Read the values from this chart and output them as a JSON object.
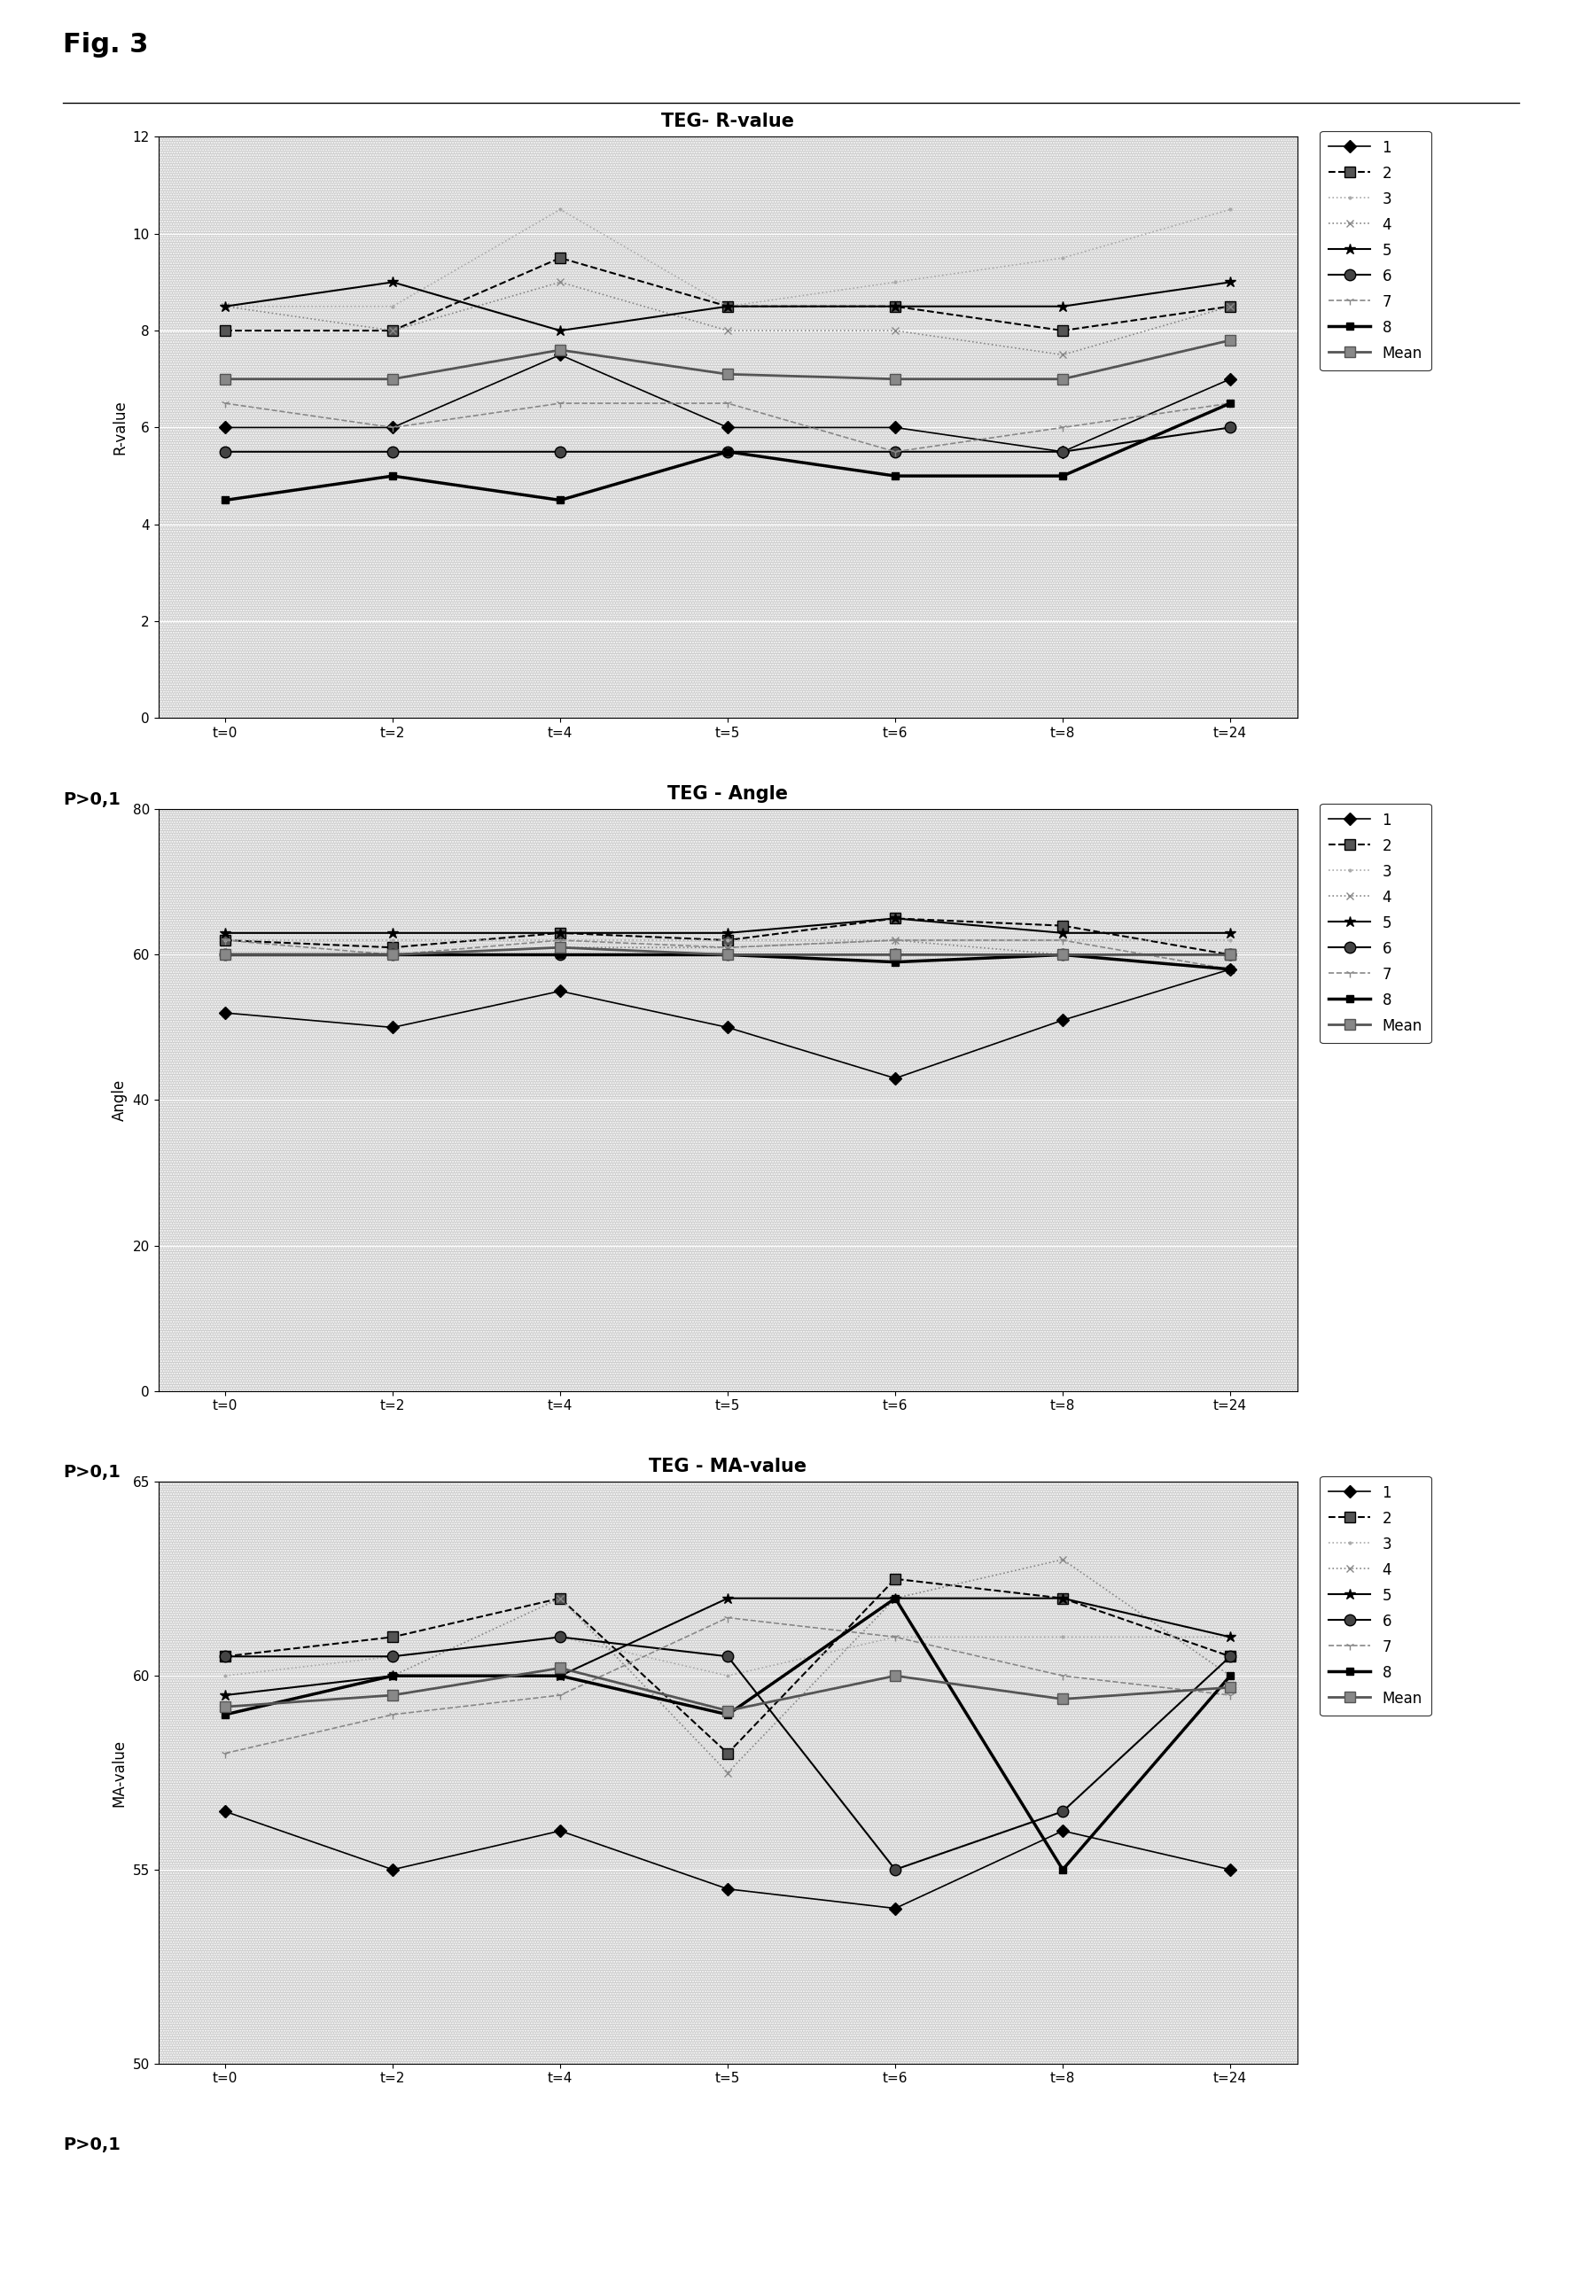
{
  "fig_label": "Fig. 3",
  "p_value_label": "P>0,1",
  "x_ticks": [
    "t=0",
    "t=2",
    "t=4",
    "t=5",
    "t=6",
    "t=8",
    "t=24"
  ],
  "x_vals": [
    0,
    1,
    2,
    3,
    4,
    5,
    6
  ],
  "chart1": {
    "title": "TEG- R-value",
    "ylabel": "R-value",
    "ylim": [
      0,
      12
    ],
    "yticks": [
      0,
      2,
      4,
      6,
      8,
      10,
      12
    ],
    "series": {
      "1": [
        6.0,
        6.0,
        7.5,
        6.0,
        6.0,
        5.5,
        7.0
      ],
      "2": [
        8.0,
        8.0,
        9.5,
        8.5,
        8.5,
        8.0,
        8.5
      ],
      "3": [
        8.5,
        8.5,
        10.5,
        8.5,
        9.0,
        9.5,
        10.5
      ],
      "4": [
        8.5,
        8.0,
        9.0,
        8.0,
        8.0,
        7.5,
        8.5
      ],
      "5": [
        8.5,
        9.0,
        8.0,
        8.5,
        8.5,
        8.5,
        9.0
      ],
      "6": [
        5.5,
        5.5,
        5.5,
        5.5,
        5.5,
        5.5,
        6.0
      ],
      "7": [
        6.5,
        6.0,
        6.5,
        6.5,
        5.5,
        6.0,
        6.5
      ],
      "8": [
        4.5,
        5.0,
        4.5,
        5.5,
        5.0,
        5.0,
        6.5
      ],
      "Mean": [
        7.0,
        7.0,
        7.6,
        7.1,
        7.0,
        7.0,
        7.8
      ]
    }
  },
  "chart2": {
    "title": "TEG - Angle",
    "ylabel": "Angle",
    "ylim": [
      0,
      80
    ],
    "yticks": [
      0,
      20,
      40,
      60,
      80
    ],
    "series": {
      "1": [
        52,
        50,
        55,
        50,
        43,
        51,
        58
      ],
      "2": [
        62,
        61,
        63,
        62,
        65,
        64,
        60
      ],
      "3": [
        62,
        62,
        62,
        62,
        62,
        62,
        62
      ],
      "4": [
        60,
        60,
        61,
        61,
        62,
        60,
        60
      ],
      "5": [
        63,
        63,
        63,
        63,
        65,
        63,
        63
      ],
      "6": [
        60,
        60,
        60,
        60,
        60,
        60,
        60
      ],
      "7": [
        62,
        60,
        62,
        61,
        62,
        62,
        58
      ],
      "8": [
        60,
        60,
        60,
        60,
        59,
        60,
        58
      ],
      "Mean": [
        60,
        60,
        61,
        60,
        60,
        60,
        60
      ]
    }
  },
  "chart3": {
    "title": "TEG - MA-value",
    "ylabel": "MA-value",
    "ylim": [
      50,
      65
    ],
    "yticks": [
      50,
      55,
      60,
      65
    ],
    "series": {
      "1": [
        56.5,
        55.0,
        56.0,
        54.5,
        54.0,
        56.0,
        55.0
      ],
      "2": [
        60.5,
        61.0,
        62.0,
        58.0,
        62.5,
        62.0,
        60.5
      ],
      "3": [
        60.0,
        60.5,
        61.0,
        60.0,
        61.0,
        61.0,
        61.0
      ],
      "4": [
        59.0,
        60.0,
        62.0,
        57.5,
        62.0,
        63.0,
        60.0
      ],
      "5": [
        59.5,
        60.0,
        60.0,
        62.0,
        62.0,
        62.0,
        61.0
      ],
      "6": [
        60.5,
        60.5,
        61.0,
        60.5,
        55.0,
        56.5,
        60.5
      ],
      "7": [
        58.0,
        59.0,
        59.5,
        61.5,
        61.0,
        60.0,
        59.5
      ],
      "8": [
        59.0,
        60.0,
        60.0,
        59.0,
        62.0,
        55.0,
        60.0
      ],
      "Mean": [
        59.2,
        59.5,
        60.2,
        59.1,
        60.0,
        59.4,
        59.7
      ]
    }
  },
  "series_styles": {
    "1": {
      "color": "#000000",
      "marker": "D",
      "linestyle": "-",
      "linewidth": 1.2,
      "markersize": 7,
      "markerfacecolor": "#000000"
    },
    "2": {
      "color": "#000000",
      "marker": "s",
      "linestyle": "--",
      "linewidth": 1.5,
      "markersize": 8,
      "markerfacecolor": "#555555"
    },
    "3": {
      "color": "#aaaaaa",
      "marker": ".",
      "linestyle": ":",
      "linewidth": 1.2,
      "markersize": 4,
      "markerfacecolor": "#aaaaaa"
    },
    "4": {
      "color": "#888888",
      "marker": "x",
      "linestyle": ":",
      "linewidth": 1.2,
      "markersize": 6,
      "markerfacecolor": "#888888"
    },
    "5": {
      "color": "#000000",
      "marker": "*",
      "linestyle": "-",
      "linewidth": 1.5,
      "markersize": 9,
      "markerfacecolor": "#000000"
    },
    "6": {
      "color": "#000000",
      "marker": "o",
      "linestyle": "-",
      "linewidth": 1.5,
      "markersize": 9,
      "markerfacecolor": "#444444"
    },
    "7": {
      "color": "#888888",
      "marker": "1",
      "linestyle": "--",
      "linewidth": 1.2,
      "markersize": 7,
      "markerfacecolor": "#888888"
    },
    "8": {
      "color": "#000000",
      "marker": "s",
      "linestyle": "-",
      "linewidth": 2.5,
      "markersize": 6,
      "markerfacecolor": "#000000"
    },
    "Mean": {
      "color": "#555555",
      "marker": "s",
      "linestyle": "-",
      "linewidth": 2.0,
      "markersize": 8,
      "markerfacecolor": "#888888"
    }
  },
  "legend_order": [
    "1",
    "2",
    "3",
    "4",
    "5",
    "6",
    "7",
    "8",
    "Mean"
  ],
  "bg_hatch": ".....",
  "bg_color": "#b8b8b8"
}
